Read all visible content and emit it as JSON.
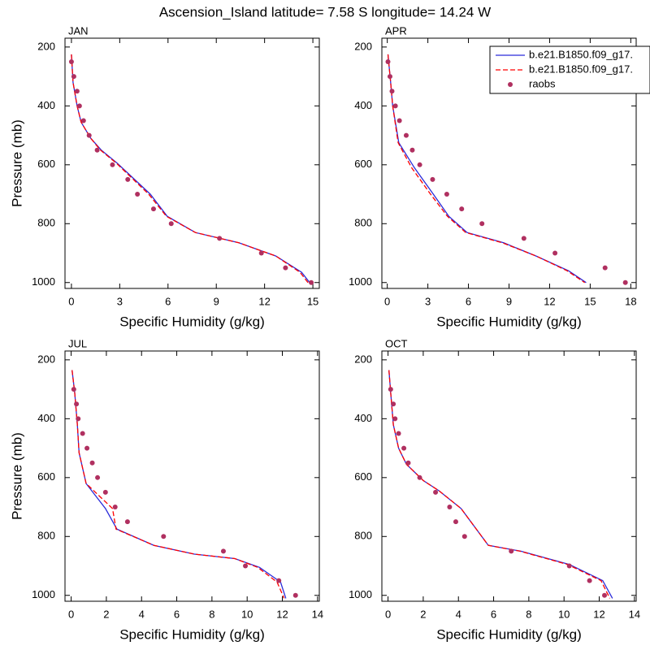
{
  "title": "Ascension_Island  latitude= 7.58 S longitude= 14.24 W",
  "chart_data": [
    {
      "type": "line",
      "title": "JAN",
      "xlabel": "Specific Humidity (g/kg)",
      "ylabel": "Pressure (mb)",
      "xlim": [
        -0.4,
        15.4
      ],
      "xticks": [
        0,
        3,
        6,
        9,
        12,
        15
      ],
      "ylim": [
        1020,
        170
      ],
      "yticks": [
        200,
        400,
        600,
        800,
        1000
      ],
      "series": [
        {
          "color": "#2b2bd9",
          "style": "solid",
          "y": [
            225,
            320,
            400,
            455,
            510,
            550,
            595,
            700,
            775,
            830,
            865,
            910,
            965,
            1000
          ],
          "x": [
            0,
            0.1,
            0.35,
            0.6,
            1.2,
            1.85,
            2.85,
            4.9,
            5.95,
            7.7,
            10.4,
            12.7,
            14.3,
            14.8
          ]
        },
        {
          "color": "#ff0000",
          "style": "dashed",
          "y": [
            225,
            320,
            400,
            455,
            510,
            550,
            595,
            700,
            775,
            830,
            865,
            910,
            965,
            1000
          ],
          "x": [
            0,
            0.1,
            0.35,
            0.6,
            1.2,
            1.8,
            2.8,
            4.8,
            5.9,
            7.7,
            10.4,
            12.7,
            14.2,
            14.7
          ]
        },
        {
          "color": "#b03060",
          "style": "dots",
          "y": [
            250,
            300,
            350,
            400,
            450,
            500,
            550,
            600,
            650,
            700,
            750,
            800,
            850,
            900,
            950,
            1000
          ],
          "x": [
            0,
            0.15,
            0.35,
            0.5,
            0.75,
            1.1,
            1.6,
            2.55,
            3.5,
            4.1,
            5.1,
            6.2,
            9.2,
            11.8,
            13.3,
            14.9
          ]
        }
      ]
    },
    {
      "type": "line",
      "title": "APR",
      "xlabel": "Specific Humidity (g/kg)",
      "xlim": [
        -0.4,
        18.4
      ],
      "xticks": [
        0,
        3,
        6,
        9,
        12,
        15,
        18
      ],
      "ylim": [
        1020,
        170
      ],
      "yticks": [
        200,
        400,
        600,
        800,
        1000
      ],
      "legend": "upper right",
      "series": [
        {
          "name": "b.e21.B1850.f09_g17.",
          "color": "#2b2bd9",
          "style": "solid",
          "y": [
            225,
            320,
            400,
            525,
            610,
            700,
            775,
            830,
            865,
            910,
            960,
            1000
          ],
          "x": [
            0.05,
            0.25,
            0.4,
            0.85,
            2,
            3.4,
            4.55,
            5.9,
            8.6,
            11,
            13.4,
            14.7
          ]
        },
        {
          "name": "b.e21.B1850.f09_g17.",
          "color": "#ff0000",
          "style": "dashed",
          "y": [
            225,
            320,
            400,
            525,
            610,
            700,
            775,
            830,
            865,
            910,
            960,
            1000
          ],
          "x": [
            0.05,
            0.25,
            0.4,
            0.8,
            1.8,
            3.2,
            4.45,
            5.8,
            8.5,
            11,
            13.3,
            14.6
          ]
        },
        {
          "name": "raobs",
          "color": "#b03060",
          "style": "dots",
          "y": [
            250,
            300,
            350,
            400,
            450,
            500,
            550,
            600,
            650,
            700,
            750,
            800,
            850,
            900,
            950,
            1000
          ],
          "x": [
            0.05,
            0.2,
            0.35,
            0.6,
            0.9,
            1.4,
            1.85,
            2.4,
            3.35,
            4.4,
            5.5,
            7.0,
            10.1,
            12.4,
            16.1,
            17.6
          ]
        }
      ]
    },
    {
      "type": "line",
      "title": "JUL",
      "xlabel": "Specific Humidity (g/kg)",
      "ylabel": "Pressure (mb)",
      "xlim": [
        -0.35,
        14.1
      ],
      "xticks": [
        0,
        2,
        4,
        6,
        8,
        10,
        12,
        14
      ],
      "ylim": [
        1020,
        170
      ],
      "yticks": [
        200,
        400,
        600,
        800,
        1000
      ],
      "series": [
        {
          "color": "#2b2bd9",
          "style": "solid",
          "y": [
            235,
            310,
            420,
            515,
            620,
            705,
            775,
            830,
            860,
            875,
            905,
            955,
            1010
          ],
          "x": [
            0.05,
            0.2,
            0.35,
            0.45,
            0.85,
            1.95,
            2.6,
            4.7,
            7,
            9.3,
            10.7,
            11.9,
            12.2
          ]
        },
        {
          "color": "#ff0000",
          "style": "dashed",
          "y": [
            235,
            310,
            420,
            515,
            620,
            705,
            775,
            830,
            860,
            875,
            905,
            955,
            1010
          ],
          "x": [
            0.05,
            0.2,
            0.35,
            0.45,
            0.85,
            2.35,
            2.55,
            4.7,
            7,
            9.3,
            10.6,
            11.7,
            12.1
          ]
        },
        {
          "color": "#b03060",
          "style": "dots",
          "y": [
            300,
            350,
            400,
            450,
            500,
            550,
            600,
            650,
            700,
            750,
            800,
            850,
            900,
            950,
            1000
          ],
          "x": [
            0.15,
            0.3,
            0.4,
            0.65,
            0.9,
            1.2,
            1.5,
            1.95,
            2.5,
            3.2,
            5.25,
            8.65,
            9.9,
            11.8,
            12.75
          ]
        }
      ]
    },
    {
      "type": "line",
      "title": "OCT",
      "xlabel": "Specific Humidity (g/kg)",
      "xlim": [
        -0.35,
        14.1
      ],
      "xticks": [
        0,
        2,
        4,
        6,
        8,
        10,
        12,
        14
      ],
      "ylim": [
        1020,
        170
      ],
      "yticks": [
        200,
        400,
        600,
        800,
        1000
      ],
      "series": [
        {
          "color": "#2b2bd9",
          "style": "solid",
          "y": [
            235,
            310,
            420,
            500,
            555,
            610,
            645,
            705,
            830,
            850,
            895,
            950,
            1010
          ],
          "x": [
            0.05,
            0.15,
            0.3,
            0.6,
            1.05,
            2,
            2.9,
            4.15,
            5.7,
            7.55,
            10.3,
            12.2,
            12.75
          ]
        },
        {
          "color": "#ff0000",
          "style": "dashed",
          "y": [
            235,
            310,
            420,
            500,
            555,
            610,
            645,
            705,
            830,
            850,
            895,
            950,
            1010
          ],
          "x": [
            0.05,
            0.15,
            0.3,
            0.6,
            1.05,
            2,
            2.9,
            4.15,
            5.7,
            7.5,
            10.2,
            12.1,
            12.6
          ]
        },
        {
          "color": "#b03060",
          "style": "dots",
          "y": [
            300,
            350,
            400,
            450,
            500,
            550,
            600,
            650,
            700,
            750,
            800,
            850,
            900,
            950,
            1000
          ],
          "x": [
            0.15,
            0.3,
            0.4,
            0.6,
            0.9,
            1.15,
            1.8,
            2.7,
            3.5,
            3.85,
            4.35,
            7.0,
            10.3,
            11.45,
            12.3
          ]
        }
      ]
    }
  ]
}
